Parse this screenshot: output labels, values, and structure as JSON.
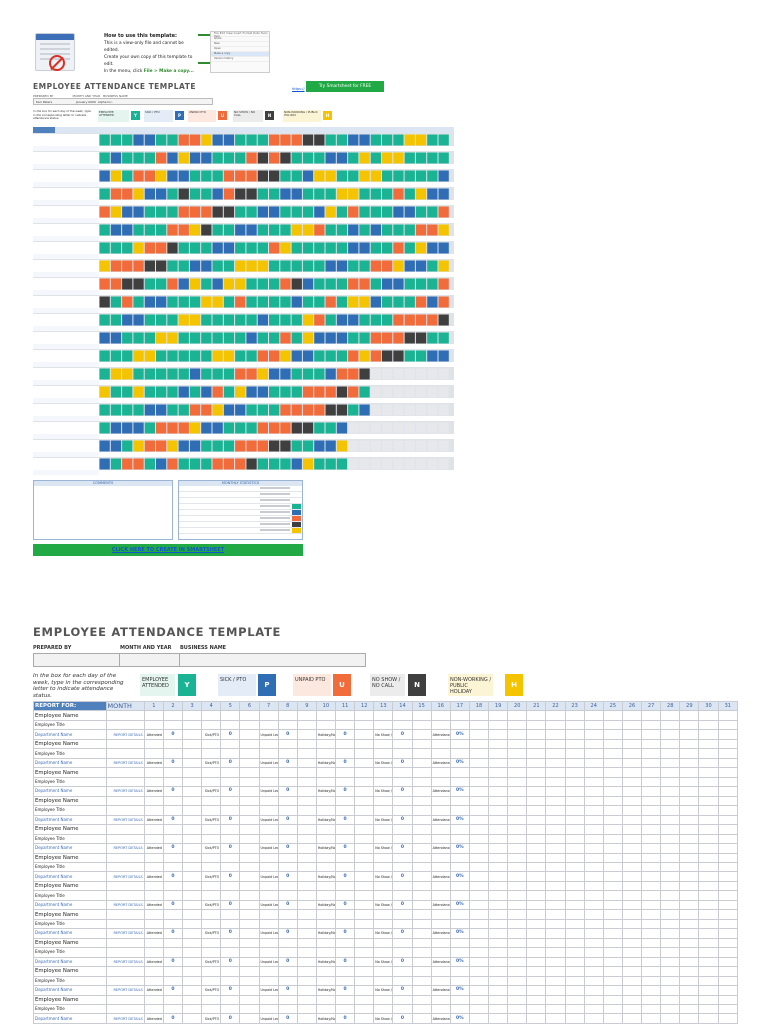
{
  "howto": {
    "thumb_text": "You can only view this document. To make changes, get the editor by making a copy.",
    "title": "How to use this template:",
    "line1": "This is a view-only file and cannot be edited.",
    "line2": "Create your own copy of this template to edit.",
    "line3_prefix": "In the menu, click ",
    "line3_action": "File > Make a copy...",
    "menu_items": [
      "File",
      "Edit",
      "View",
      "Insert",
      "Format",
      "Data",
      "Tools",
      "Help"
    ],
    "menu_rows": [
      "Share",
      "New",
      "Open",
      "Make a copy",
      "Version history"
    ]
  },
  "mini": {
    "title": "EMPLOYEE ATTENDANCE TEMPLATE",
    "link": "https://",
    "try_button": "Try Smartsheet for FREE",
    "meta_labels": [
      "PREPARED BY",
      "MONTH AND YEAR",
      "BUSINESS NAME"
    ],
    "meta_values": [
      "Kari Peters",
      "January 0000",
      "Alpha Inc."
    ],
    "comments": "COMMENTS",
    "stats": "MONTHLY STATISTICS",
    "cta": "CLICK HERE TO CREATE IN SMARTSHEET"
  },
  "main": {
    "title": "EMPLOYEE ATTENDANCE TEMPLATE",
    "meta_labels": [
      "PREPARED BY",
      "MONTH AND YEAR",
      "BUSINESS NAME"
    ],
    "instructions": "In the box for each day of the week, type in the corresponding letter to indicate attendance status.",
    "legend": [
      {
        "label": "EMPLOYEE ATTENDED",
        "key": "Y",
        "color": "#1ab394",
        "bg": "#e4f4ef"
      },
      {
        "label": "SICK / PTO",
        "key": "P",
        "color": "#2f6eb5",
        "bg": "#e3ecf7"
      },
      {
        "label": "UNPAID PTO",
        "key": "U",
        "color": "#f26b3a",
        "bg": "#fde8df"
      },
      {
        "label": "NO SHOW / NO CALL",
        "key": "N",
        "color": "#3f3f3f",
        "bg": "#ececec"
      },
      {
        "label": "NON-WORKING / PUBLIC HOLIDAY",
        "key": "H",
        "color": "#f5c400",
        "bg": "#fcf5d5"
      }
    ],
    "report_for": "REPORT FOR:",
    "month": "MONTH",
    "days": [
      "1",
      "2",
      "3",
      "4",
      "5",
      "6",
      "7",
      "8",
      "9",
      "10",
      "11",
      "12",
      "13",
      "14",
      "15",
      "16",
      "17",
      "18",
      "19",
      "20",
      "21",
      "22",
      "23",
      "24",
      "25",
      "26",
      "27",
      "28",
      "29",
      "30",
      "31"
    ],
    "employee_name": "Employee Name",
    "employee_title": "Employee Title",
    "department_name": "Department Name",
    "report_details": "REPORT DETAILS",
    "stat_labels": [
      "Attended",
      "Sick/PTO",
      "Unpaid Leave",
      "Holiday/Non-work",
      "No Show / No Call",
      "Attendance %"
    ],
    "stat_values": [
      "0",
      "0",
      "0",
      "0",
      "0",
      "0%"
    ]
  }
}
